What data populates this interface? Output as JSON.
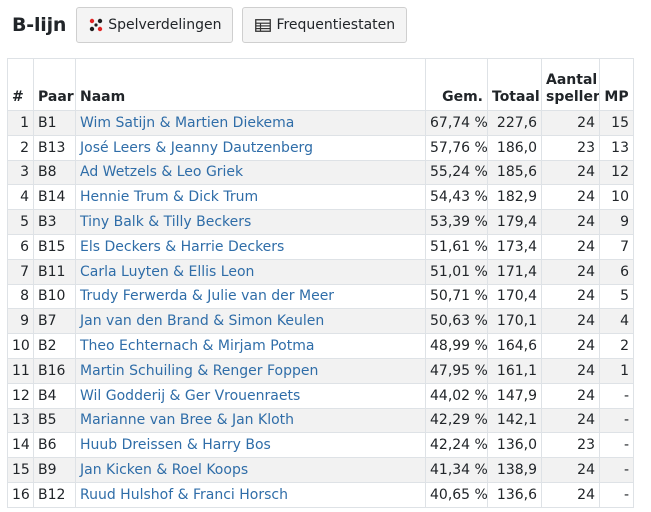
{
  "header": {
    "title": "B-lijn",
    "buttons": [
      {
        "label": "Spelverdelingen",
        "icon": "dice-icon"
      },
      {
        "label": "Frequentiestaten",
        "icon": "table-icon"
      }
    ]
  },
  "colors": {
    "link": "#2f6da8",
    "row_stripe": "#f2f2f2",
    "icon_red": "#e02424",
    "icon_dark": "#1f1f1f"
  },
  "table": {
    "columns": {
      "rank": "#",
      "pair": "Paar",
      "name": "Naam",
      "avg": "Gem.",
      "total": "Totaal",
      "games_line1": "Aantal",
      "games_line2": "spellen",
      "mp": "MP"
    },
    "rows": [
      {
        "rank": "1",
        "pair": "B1",
        "name": "Wim Satijn & Martien Diekema",
        "avg": "67,74 %",
        "total": "227,6",
        "games": "24",
        "mp": "15"
      },
      {
        "rank": "2",
        "pair": "B13",
        "name": "José Leers & Jeanny Dautzenberg",
        "avg": "57,76 %",
        "total": "186,0",
        "games": "23",
        "mp": "13"
      },
      {
        "rank": "3",
        "pair": "B8",
        "name": "Ad Wetzels & Leo Griek",
        "avg": "55,24 %",
        "total": "185,6",
        "games": "24",
        "mp": "12"
      },
      {
        "rank": "4",
        "pair": "B14",
        "name": "Hennie Trum & Dick Trum",
        "avg": "54,43 %",
        "total": "182,9",
        "games": "24",
        "mp": "10"
      },
      {
        "rank": "5",
        "pair": "B3",
        "name": "Tiny Balk & Tilly Beckers",
        "avg": "53,39 %",
        "total": "179,4",
        "games": "24",
        "mp": "9"
      },
      {
        "rank": "6",
        "pair": "B15",
        "name": "Els Deckers & Harrie Deckers",
        "avg": "51,61 %",
        "total": "173,4",
        "games": "24",
        "mp": "7"
      },
      {
        "rank": "7",
        "pair": "B11",
        "name": "Carla Luyten & Ellis Leon",
        "avg": "51,01 %",
        "total": "171,4",
        "games": "24",
        "mp": "6"
      },
      {
        "rank": "8",
        "pair": "B10",
        "name": "Trudy Ferwerda & Julie van der Meer",
        "avg": "50,71 %",
        "total": "170,4",
        "games": "24",
        "mp": "5"
      },
      {
        "rank": "9",
        "pair": "B7",
        "name": "Jan van den Brand & Simon Keulen",
        "avg": "50,63 %",
        "total": "170,1",
        "games": "24",
        "mp": "4"
      },
      {
        "rank": "10",
        "pair": "B2",
        "name": "Theo Echternach & Mirjam Potma",
        "avg": "48,99 %",
        "total": "164,6",
        "games": "24",
        "mp": "2"
      },
      {
        "rank": "11",
        "pair": "B16",
        "name": "Martin Schuiling & Renger Foppen",
        "avg": "47,95 %",
        "total": "161,1",
        "games": "24",
        "mp": "1"
      },
      {
        "rank": "12",
        "pair": "B4",
        "name": "Wil Godderij & Ger Vrouenraets",
        "avg": "44,02 %",
        "total": "147,9",
        "games": "24",
        "mp": "-"
      },
      {
        "rank": "13",
        "pair": "B5",
        "name": "Marianne van Bree & Jan Kloth",
        "avg": "42,29 %",
        "total": "142,1",
        "games": "24",
        "mp": "-"
      },
      {
        "rank": "14",
        "pair": "B6",
        "name": "Huub Dreissen & Harry Bos",
        "avg": "42,24 %",
        "total": "136,0",
        "games": "23",
        "mp": "-"
      },
      {
        "rank": "15",
        "pair": "B9",
        "name": "Jan Kicken & Roel Koops",
        "avg": "41,34 %",
        "total": "138,9",
        "games": "24",
        "mp": "-"
      },
      {
        "rank": "16",
        "pair": "B12",
        "name": "Ruud Hulshof & Franci Horsch",
        "avg": "40,65 %",
        "total": "136,6",
        "games": "24",
        "mp": "-"
      }
    ]
  }
}
